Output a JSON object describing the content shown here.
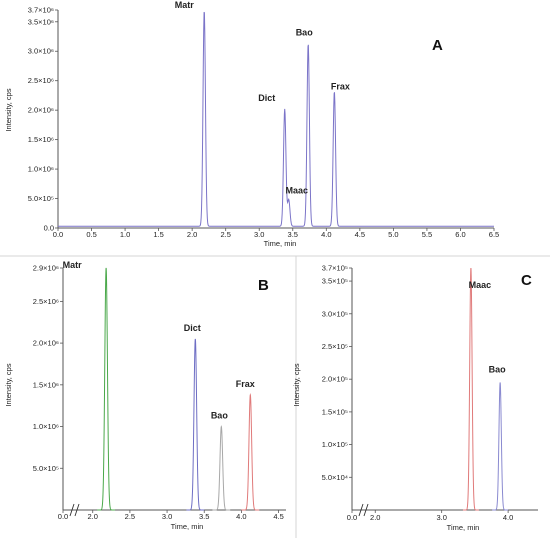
{
  "chart_data": [
    {
      "type": "line",
      "panel_label": "A",
      "xlabel": "Time, min",
      "ylabel": "Intensity, cps",
      "xlim": [
        0.0,
        6.5
      ],
      "ylim": [
        0,
        3700000
      ],
      "x_ticks": [
        "0.0",
        "0.5",
        "1.0",
        "1.5",
        "2.0",
        "2.5",
        "3.0",
        "3.5",
        "4.0",
        "4.5",
        "5.0",
        "5.5",
        "6.0",
        "6.5"
      ],
      "y_ticks": [
        "0.0",
        "5.0×10⁵",
        "1.0×10⁶",
        "1.5×10⁶",
        "2.0×10⁶",
        "2.5×10⁶",
        "3.0×10⁶",
        "3.5×10⁶",
        "3.7×10⁶"
      ],
      "baseline": 30000,
      "colors": {
        "trace": "#7b74c8"
      },
      "peaks": [
        {
          "name": "Matr",
          "time": 2.18,
          "height": 3700000
        },
        {
          "name": "Dict",
          "time": 3.38,
          "height": 2020000
        },
        {
          "name": "Maac",
          "time": 3.44,
          "height": 480000
        },
        {
          "name": "Bao",
          "time": 3.73,
          "height": 3130000
        },
        {
          "name": "Frax",
          "time": 4.12,
          "height": 2320000
        }
      ]
    },
    {
      "type": "line",
      "panel_label": "B",
      "xlabel": "Time, min",
      "ylabel": "Intensity, cps",
      "xlim": [
        1.6,
        4.6
      ],
      "ylim": [
        0,
        2900000
      ],
      "axis_break": true,
      "x_ticks": [
        "0.0",
        "2.0",
        "2.5",
        "3.0",
        "3.5",
        "4.0",
        "4.5"
      ],
      "y_ticks": [
        "5.0×10⁵",
        "1.0×10⁶",
        "1.5×10⁶",
        "2.0×10⁶",
        "2.5×10⁶",
        "2.9×10⁶"
      ],
      "colors": {
        "Matr": "#4aa84a",
        "Dict": "#6e6ec4",
        "Bao": "#a8a8a8",
        "Frax": "#e07a7a"
      },
      "peaks": [
        {
          "name": "Matr",
          "time": 2.18,
          "height": 2900000
        },
        {
          "name": "Dict",
          "time": 3.38,
          "height": 2050000
        },
        {
          "name": "Bao",
          "time": 3.73,
          "height": 1000000
        },
        {
          "name": "Frax",
          "time": 4.12,
          "height": 1380000
        }
      ]
    },
    {
      "type": "line",
      "panel_label": "C",
      "xlabel": "Time, min",
      "ylabel": "Intensity, cps",
      "xlim": [
        1.65,
        4.45
      ],
      "ylim": [
        0,
        370000
      ],
      "axis_break": true,
      "x_ticks": [
        "0.0",
        "2.0",
        "3.0",
        "4.0"
      ],
      "y_ticks": [
        "5.0×10⁴",
        "1.0×10⁵",
        "1.5×10⁵",
        "2.0×10⁵",
        "2.5×10⁵",
        "3.0×10⁵",
        "3.5×10⁵",
        "3.7×10⁵"
      ],
      "colors": {
        "Maac": "#e07a7a",
        "Bao": "#8a8ad0"
      },
      "peaks": [
        {
          "name": "Maac",
          "time": 3.44,
          "height": 370000
        },
        {
          "name": "Bao",
          "time": 3.88,
          "height": 195000
        }
      ]
    }
  ]
}
